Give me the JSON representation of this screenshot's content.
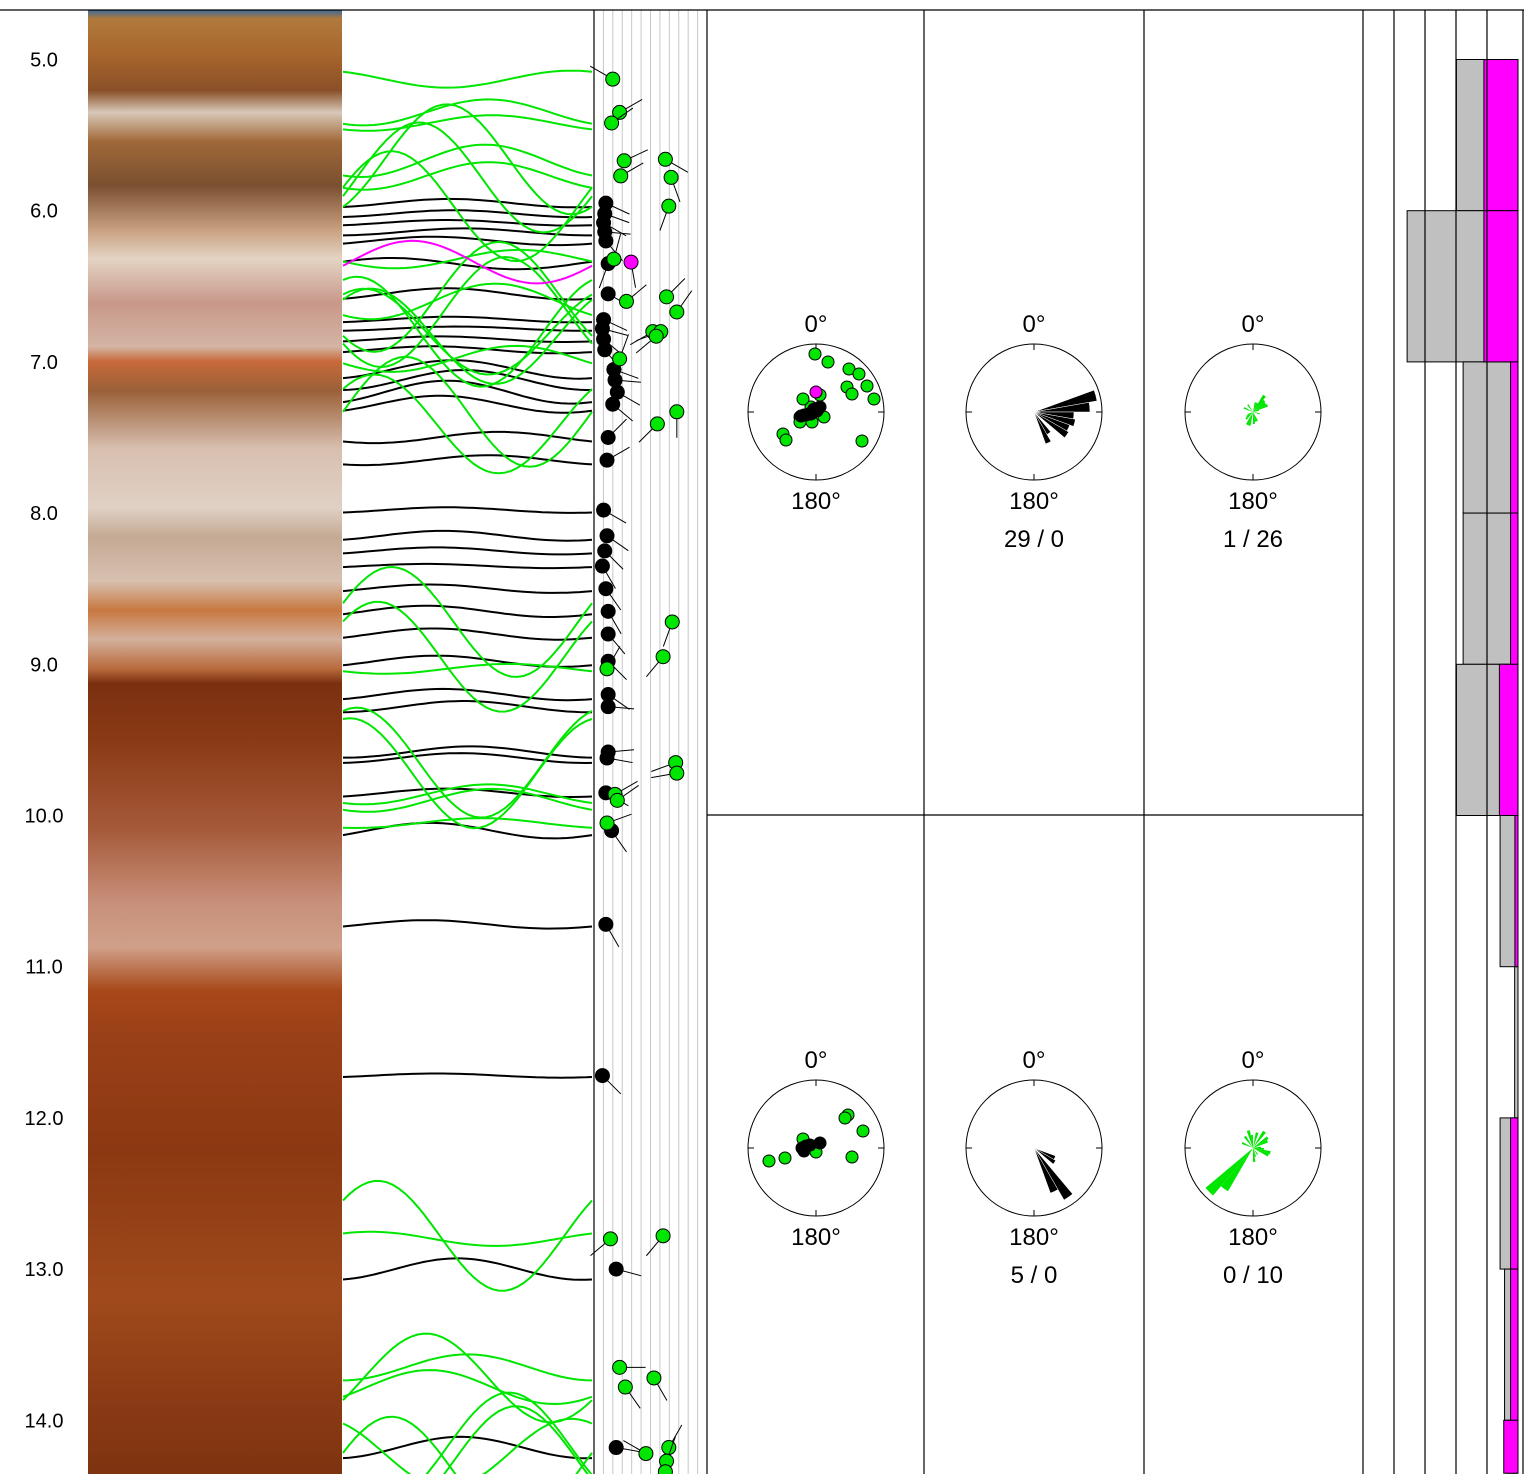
{
  "depth_axis": {
    "range": [
      4.7,
      14.35
    ],
    "ticks": [
      "5.0",
      "6.0",
      "7.0",
      "8.0",
      "9.0",
      "10.0",
      "11.0",
      "12.0",
      "13.0",
      "14.0"
    ]
  },
  "colors": {
    "green_feature": "#00e600",
    "black_feature": "#000000",
    "magenta_feature": "#ff00ff",
    "histogram_gray": "#c0c0c0",
    "background": "#ffffff"
  },
  "chart_data": [
    {
      "type": "scatter",
      "panel": "tadpole",
      "x_axis": {
        "range": [
          0,
          90
        ],
        "gridlines": 12
      },
      "series": [
        {
          "color": "black",
          "depth": [
            5.95,
            6.02,
            6.08,
            6.14,
            6.2,
            6.35,
            6.55,
            6.72,
            6.78,
            6.85,
            6.92,
            7.05,
            7.12,
            7.2,
            7.28,
            7.5,
            7.65,
            7.98,
            8.15,
            8.25,
            8.35,
            8.5,
            8.65,
            8.8,
            8.98,
            9.2,
            9.28,
            9.58,
            9.62,
            9.85,
            10.1,
            10.72,
            11.72,
            13.0,
            14.18
          ],
          "dip": [
            6,
            5,
            4,
            5,
            6,
            8,
            8,
            4,
            3,
            4,
            5,
            13,
            14,
            16,
            12,
            8,
            7,
            4,
            7,
            5,
            3,
            6,
            8,
            8,
            8,
            8,
            8,
            8,
            7,
            6,
            11,
            6,
            3,
            15,
            15
          ],
          "azimuth": [
            115,
            110,
            120,
            95,
            140,
            200,
            120,
            115,
            105,
            130,
            140,
            110,
            95,
            120,
            130,
            45,
            60,
            120,
            125,
            135,
            150,
            145,
            150,
            140,
            135,
            125,
            95,
            85,
            100,
            120,
            145,
            150,
            135,
            105,
            100
          ]
        },
        {
          "color": "green",
          "depth": [
            5.13,
            5.35,
            5.42,
            5.67,
            5.77,
            5.66,
            5.78,
            5.97,
            6.32,
            6.6,
            6.57,
            6.67,
            6.8,
            6.8,
            6.83,
            6.98,
            7.41,
            7.33,
            8.72,
            8.95,
            9.03,
            9.65,
            9.72,
            9.86,
            9.9,
            10.05,
            12.8,
            12.78,
            13.65,
            13.72,
            13.78,
            14.22,
            14.18,
            14.27,
            14.34
          ],
          "dip": [
            12,
            18,
            11,
            22,
            19,
            58,
            63,
            61,
            13,
            24,
            59,
            68,
            47,
            54,
            50,
            18,
            51,
            68,
            64,
            56,
            7,
            67,
            68,
            14,
            16,
            7,
            10,
            56,
            18,
            48,
            23,
            41,
            61,
            59,
            58
          ],
          "azimuth": [
            300,
            60,
            55,
            65,
            60,
            120,
            160,
            200,
            15,
            50,
            45,
            35,
            240,
            250,
            230,
            20,
            225,
            180,
            200,
            220,
            30,
            250,
            260,
            60,
            55,
            70,
            230,
            220,
            90,
            150,
            145,
            300,
            30,
            20,
            200
          ]
        },
        {
          "color": "magenta",
          "depth": [
            6.34
          ],
          "dip": [
            28
          ],
          "azimuth": [
            170
          ]
        }
      ]
    },
    {
      "type": "scatter",
      "panel": "stereonet",
      "interval": "upper",
      "north_label": "0°",
      "south_label": "180°",
      "series": [
        {
          "color": "green",
          "points": [
            [
              -33,
              22
            ],
            [
              -1,
              -58
            ],
            [
              12,
              -50
            ],
            [
              33,
              -43
            ],
            [
              43,
              -38
            ],
            [
              51,
              -26
            ],
            [
              31,
              -25
            ],
            [
              36,
              -18
            ],
            [
              58,
              -13
            ],
            [
              4,
              -17
            ],
            [
              -5,
              -5
            ],
            [
              -30,
              28
            ],
            [
              -16,
              5
            ],
            [
              -16,
              10
            ],
            [
              -4,
              10
            ],
            [
              -13,
              -13
            ],
            [
              8,
              5
            ],
            [
              46,
              29
            ]
          ]
        },
        {
          "color": "black",
          "points": [
            [
              -15,
              4
            ],
            [
              -12,
              3
            ],
            [
              -10,
              3
            ],
            [
              -7,
              2
            ],
            [
              -5,
              2
            ],
            [
              -4,
              0
            ],
            [
              -2,
              -3
            ],
            [
              1,
              -1
            ],
            [
              2,
              -3
            ],
            [
              3,
              -4
            ],
            [
              4,
              -5
            ]
          ]
        },
        {
          "color": "magenta",
          "points": [
            [
              0,
              -20
            ]
          ]
        }
      ]
    },
    {
      "type": "bar",
      "panel": "rose",
      "interval": "upper",
      "north_label": "0°",
      "south_label": "180°",
      "count_label": "29 / 0",
      "color": "black",
      "petals": [
        [
          70,
          80,
          64
        ],
        [
          80,
          90,
          56
        ],
        [
          90,
          100,
          40
        ],
        [
          100,
          110,
          42
        ],
        [
          110,
          120,
          38
        ],
        [
          120,
          130,
          40
        ],
        [
          140,
          150,
          26
        ],
        [
          150,
          160,
          34
        ]
      ]
    },
    {
      "type": "bar",
      "panel": "rose",
      "interval": "upper",
      "north_label": "0°",
      "south_label": "180°",
      "count_label": "1 / 26",
      "color": "green",
      "petals": [
        [
          10,
          20,
          10
        ],
        [
          20,
          30,
          10
        ],
        [
          30,
          40,
          20
        ],
        [
          40,
          50,
          16
        ],
        [
          50,
          60,
          15
        ],
        [
          60,
          70,
          16
        ],
        [
          70,
          80,
          6
        ],
        [
          100,
          110,
          7
        ],
        [
          150,
          160,
          10
        ],
        [
          160,
          170,
          10
        ],
        [
          170,
          180,
          12
        ],
        [
          190,
          200,
          14
        ],
        [
          200,
          210,
          14
        ],
        [
          220,
          230,
          10
        ],
        [
          230,
          240,
          8
        ],
        [
          240,
          250,
          6
        ],
        [
          290,
          300,
          10
        ],
        [
          320,
          330,
          9
        ]
      ]
    },
    {
      "type": "scatter",
      "panel": "stereonet",
      "interval": "lower",
      "north_label": "0°",
      "south_label": "180°",
      "series": [
        {
          "color": "green",
          "points": [
            [
              32,
              -33
            ],
            [
              29,
              -30
            ],
            [
              47,
              -17
            ],
            [
              -13,
              -9
            ],
            [
              -47,
              13
            ],
            [
              -31,
              10
            ],
            [
              0,
              4
            ],
            [
              36,
              9
            ]
          ]
        },
        {
          "color": "black",
          "points": [
            [
              -10,
              -2
            ],
            [
              -6,
              -3
            ],
            [
              4,
              -5
            ],
            [
              -14,
              0
            ],
            [
              -12,
              3
            ]
          ]
        }
      ]
    },
    {
      "type": "bar",
      "panel": "rose",
      "interval": "lower",
      "north_label": "0°",
      "south_label": "180°",
      "count_label": "5 / 0",
      "color": "black",
      "petals": [
        [
          110,
          120,
          23
        ],
        [
          120,
          130,
          25
        ],
        [
          140,
          150,
          60
        ],
        [
          150,
          160,
          48
        ]
      ]
    },
    {
      "type": "bar",
      "panel": "rose",
      "interval": "lower",
      "north_label": "0°",
      "south_label": "180°",
      "count_label": "0 / 10",
      "color": "green",
      "petals": [
        [
          10,
          20,
          16
        ],
        [
          30,
          40,
          20
        ],
        [
          50,
          60,
          18
        ],
        [
          60,
          70,
          16
        ],
        [
          80,
          90,
          8
        ],
        [
          90,
          100,
          11
        ],
        [
          100,
          110,
          18
        ],
        [
          110,
          120,
          17
        ],
        [
          140,
          150,
          8
        ],
        [
          160,
          170,
          9
        ],
        [
          170,
          180,
          14
        ],
        [
          210,
          220,
          50
        ],
        [
          220,
          230,
          62
        ],
        [
          290,
          300,
          12
        ],
        [
          320,
          330,
          14
        ],
        [
          340,
          350,
          18
        ],
        [
          350,
          360,
          13
        ]
      ]
    },
    {
      "type": "bar",
      "panel": "histogram",
      "series": [
        {
          "color": "gray",
          "intervals": [
            [
              5.0,
              6.0
            ],
            [
              6.0,
              7.0
            ],
            [
              7.0,
              8.0
            ],
            [
              8.0,
              9.0
            ],
            [
              9.0,
              10.0
            ],
            [
              10.0,
              11.0
            ],
            [
              11.0,
              12.0
            ],
            [
              12.0,
              13.0
            ],
            [
              13.0,
              14.0
            ],
            [
              14.0,
              14.35
            ]
          ],
          "values": [
            0.55,
            0.99,
            0.49,
            0.49,
            0.55,
            0.16,
            0.03,
            0.16,
            0.12,
            0.1
          ]
        },
        {
          "color": "magenta",
          "intervals": [
            [
              5.0,
              6.0
            ],
            [
              6.0,
              7.0
            ],
            [
              7.0,
              8.0
            ],
            [
              8.0,
              9.0
            ],
            [
              9.0,
              10.0
            ],
            [
              10.0,
              11.0
            ],
            [
              11.0,
              12.0
            ],
            [
              12.0,
              13.0
            ],
            [
              13.0,
              14.0
            ],
            [
              14.0,
              14.35
            ]
          ],
          "values": [
            0.55,
            0.55,
            0.12,
            0.12,
            0.3,
            0.05,
            0.0,
            0.12,
            0.12,
            0.23
          ]
        }
      ]
    }
  ]
}
